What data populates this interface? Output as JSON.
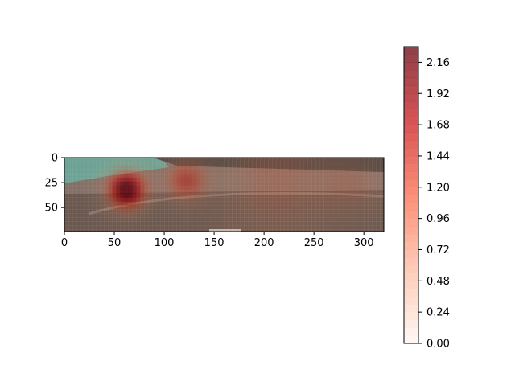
{
  "chart_data": {
    "type": "heatmap",
    "title": "",
    "xlabel": "",
    "ylabel": "",
    "image_extent": {
      "x": [
        0,
        320
      ],
      "y": [
        74,
        0
      ]
    },
    "x_ticks": [
      0,
      50,
      100,
      150,
      200,
      250,
      300
    ],
    "y_ticks": [
      0,
      25,
      50
    ],
    "colorbar": {
      "range": [
        0.0,
        2.28
      ],
      "ticks": [
        "0.00",
        "0.24",
        "0.48",
        "0.72",
        "0.96",
        "1.20",
        "1.44",
        "1.68",
        "1.92",
        "2.16"
      ],
      "colormap": "Reds",
      "alpha": 0.6
    },
    "hotspots": [
      {
        "x": 62,
        "y": 32,
        "sigma": 14,
        "value": 2.25
      },
      {
        "x": 122,
        "y": 23,
        "sigma": 15,
        "value": 1.2
      },
      {
        "x": 215,
        "y": 22,
        "sigma": 45,
        "value": 0.62
      },
      {
        "x": 290,
        "y": 28,
        "sigma": 22,
        "value": 0.45
      }
    ],
    "background_scene": {
      "colors": {
        "water": "#4f9a8c",
        "ground_far": "#6a5a52",
        "ground_near": "#4c3c34",
        "trees": "#2e2a26",
        "ridge": "#8a7a70",
        "boat_rail": "#b8b8b0"
      }
    }
  }
}
